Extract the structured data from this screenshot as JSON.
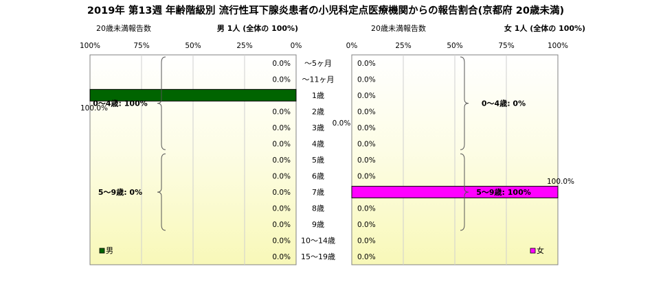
{
  "title": "2019年 第13週 年齢階級別 流行性耳下腺炎患者の小児科定点医療機関からの報告割合(京都府 20歳未満)",
  "age_labels": [
    "～5ヶ月",
    "～11ヶ月",
    "1歳",
    "2歳",
    "3歳",
    "4歳",
    "5歳",
    "6歳",
    "7歳",
    "8歳",
    "9歳",
    "10～14歳",
    "15～19歳"
  ],
  "center_label": "0.0%",
  "chart_data": [
    {
      "type": "bar",
      "orientation": "horizontal",
      "direction": "right-to-left",
      "panel_header": "男 1人 (全体の 100%)",
      "left_header": "20歳未満報告数",
      "legend": "男",
      "legend_position": "bottom-left",
      "color": "#006400",
      "axis_ticks": [
        "100%",
        "75%",
        "50%",
        "25%",
        "0%"
      ],
      "xlim": [
        0,
        100
      ],
      "categories": [
        "～5ヶ月",
        "～11ヶ月",
        "1歳",
        "2歳",
        "3歳",
        "4歳",
        "5歳",
        "6歳",
        "7歳",
        "8歳",
        "9歳",
        "10～14歳",
        "15～19歳"
      ],
      "values": [
        0,
        0,
        100,
        0,
        0,
        0,
        0,
        0,
        0,
        0,
        0,
        0,
        0
      ],
      "data_labels": [
        "0.0%",
        "0.0%",
        "100.0%",
        "0.0%",
        "0.0%",
        "0.0%",
        "0.0%",
        "0.0%",
        "0.0%",
        "0.0%",
        "0.0%",
        "0.0%",
        "0.0%"
      ],
      "groups": [
        {
          "label": "0～4歳: 100%",
          "from": 0,
          "to": 5
        },
        {
          "label": "5～9歳: 0%",
          "from": 6,
          "to": 10
        }
      ]
    },
    {
      "type": "bar",
      "orientation": "horizontal",
      "direction": "left-to-right",
      "panel_header": "女 1人 (全体の 100%)",
      "left_header": "20歳未満報告数",
      "legend": "女",
      "legend_position": "bottom-right",
      "color": "#ff00ff",
      "axis_ticks": [
        "0%",
        "25%",
        "50%",
        "75%",
        "100%"
      ],
      "xlim": [
        0,
        100
      ],
      "categories": [
        "～5ヶ月",
        "～11ヶ月",
        "1歳",
        "2歳",
        "3歳",
        "4歳",
        "5歳",
        "6歳",
        "7歳",
        "8歳",
        "9歳",
        "10～14歳",
        "15～19歳"
      ],
      "values": [
        0,
        0,
        0,
        0,
        0,
        0,
        0,
        0,
        100,
        0,
        0,
        0,
        0
      ],
      "data_labels": [
        "0.0%",
        "0.0%",
        "0.0%",
        "0.0%",
        "0.0%",
        "0.0%",
        "0.0%",
        "0.0%",
        "100.0%",
        "0.0%",
        "0.0%",
        "0.0%",
        "0.0%"
      ],
      "groups": [
        {
          "label": "0～4歳: 0%",
          "from": 0,
          "to": 5
        },
        {
          "label": "5～9歳: 100%",
          "from": 6,
          "to": 10
        }
      ]
    }
  ]
}
